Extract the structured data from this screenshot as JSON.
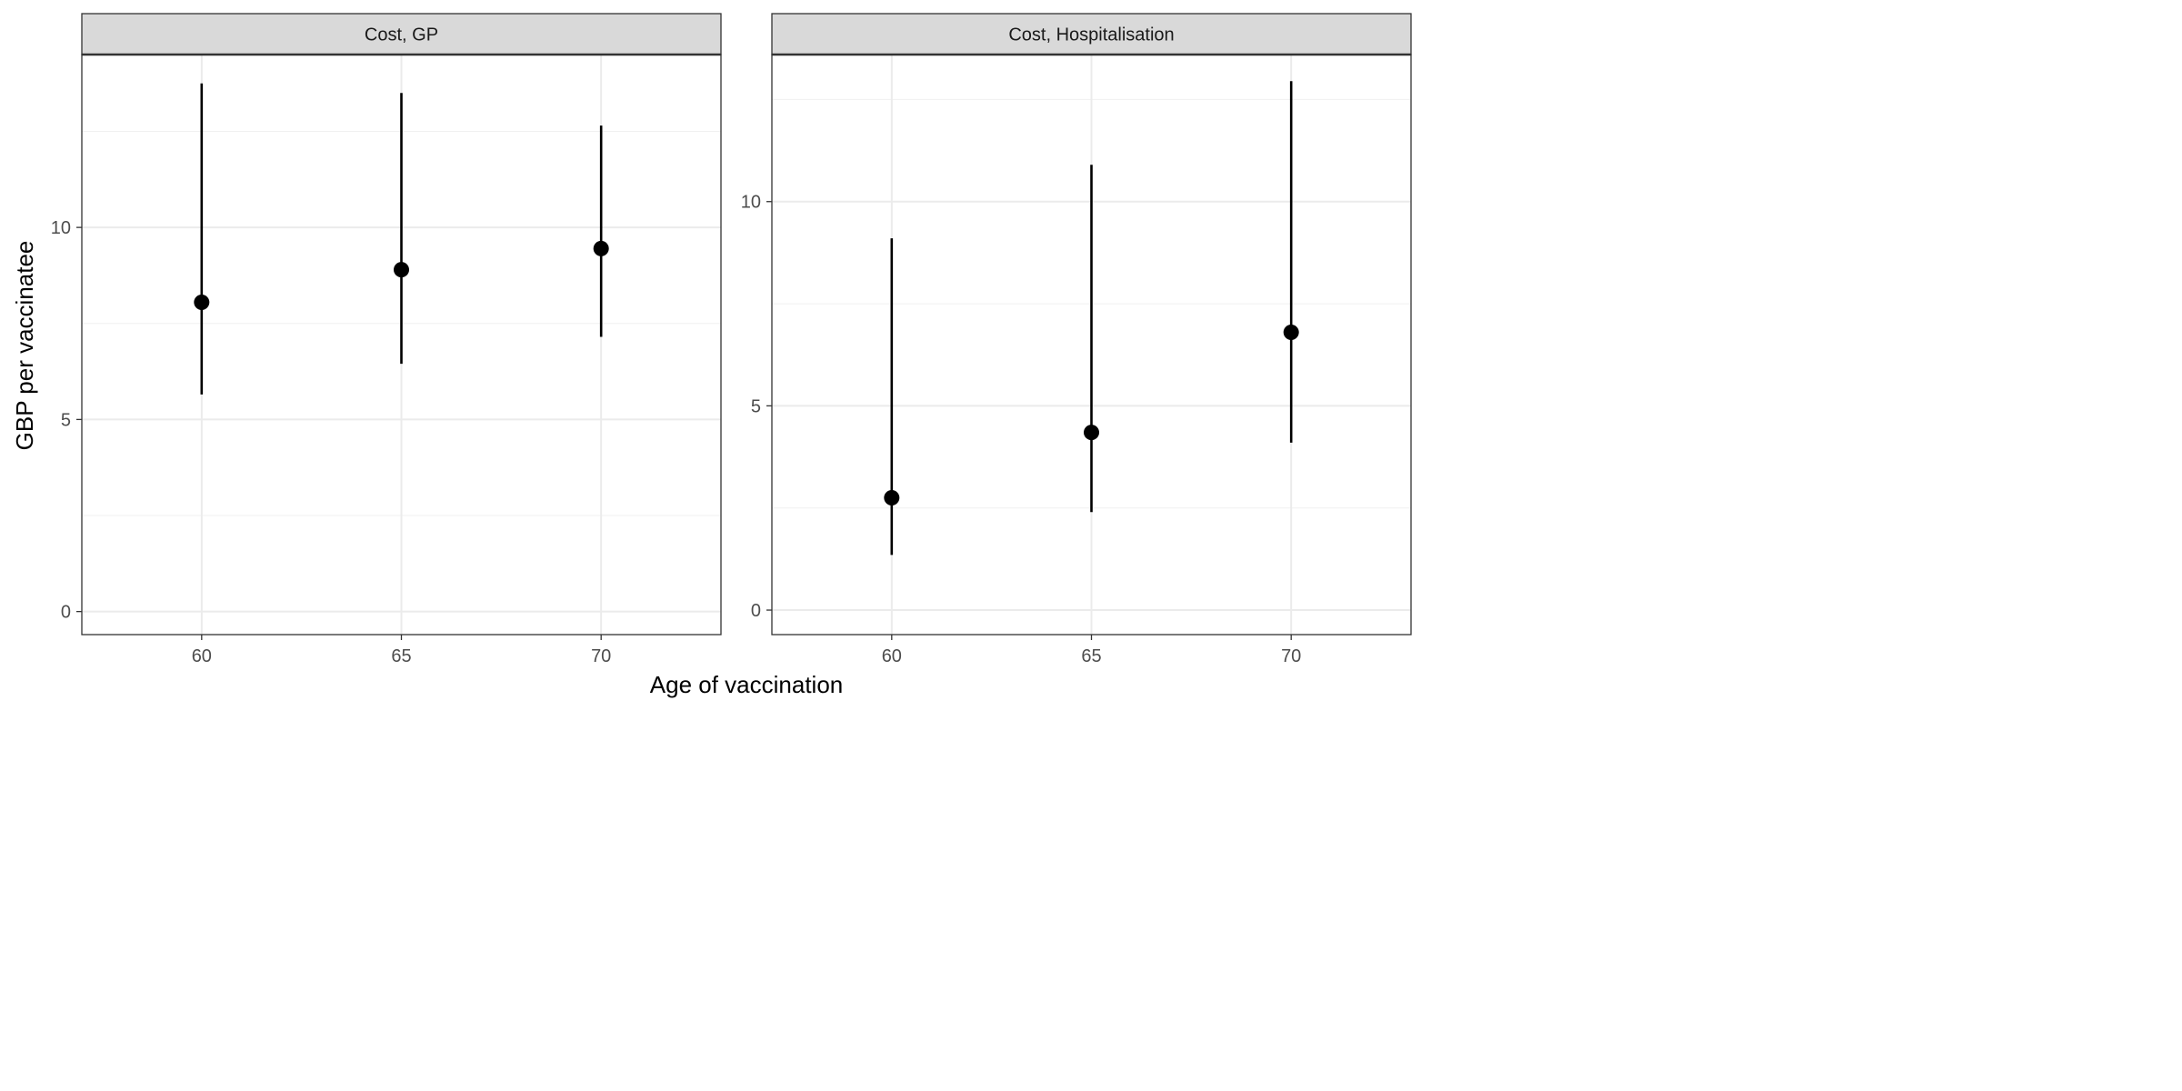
{
  "chart_data": {
    "type": "pointrange",
    "xlabel": "Age of vaccination",
    "ylabel": "GBP per vaccinatee",
    "x_ticks": [
      60,
      65,
      70
    ],
    "xlim": [
      57,
      73
    ],
    "grid": true,
    "panels": [
      {
        "title": "Cost, GP",
        "ylim": [
          -0.6,
          14.5
        ],
        "y_ticks": [
          0,
          5,
          10
        ],
        "points": [
          {
            "x": 60,
            "y": 8.05,
            "lower": 5.65,
            "upper": 13.75
          },
          {
            "x": 65,
            "y": 8.9,
            "lower": 6.45,
            "upper": 13.5
          },
          {
            "x": 70,
            "y": 9.45,
            "lower": 7.15,
            "upper": 12.65
          }
        ]
      },
      {
        "title": "Cost, Hospitalisation",
        "ylim": [
          -0.6,
          13.6
        ],
        "y_ticks": [
          0,
          5,
          10
        ],
        "points": [
          {
            "x": 60,
            "y": 2.75,
            "lower": 1.35,
            "upper": 9.1
          },
          {
            "x": 65,
            "y": 4.35,
            "lower": 2.4,
            "upper": 10.9
          },
          {
            "x": 70,
            "y": 6.8,
            "lower": 4.1,
            "upper": 12.95
          }
        ]
      }
    ]
  }
}
